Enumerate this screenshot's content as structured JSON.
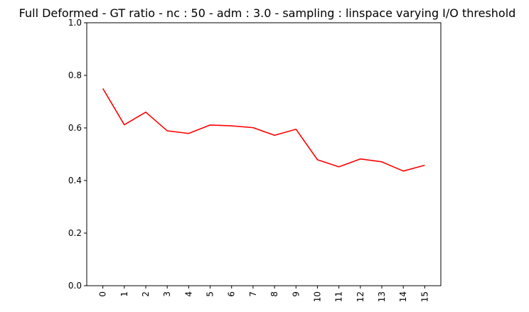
{
  "chart_data": {
    "type": "line",
    "title": "Full Deformed - GT ratio - nc : 50 - adm : 3.0 - sampling : linspace varying I/O threshold",
    "xlabel": "",
    "ylabel": "",
    "categories": [
      "0",
      "1",
      "2",
      "3",
      "4",
      "5",
      "6",
      "7",
      "8",
      "9",
      "10",
      "11",
      "12",
      "13",
      "14",
      "15"
    ],
    "series": [
      {
        "values": [
          0.75,
          0.612,
          0.66,
          0.589,
          0.579,
          0.611,
          0.608,
          0.601,
          0.572,
          0.595,
          0.479,
          0.452,
          0.482,
          0.471,
          0.436,
          0.458
        ],
        "color": "#ff0000"
      }
    ],
    "ylim": [
      0,
      1.0
    ],
    "yticks": [
      "0.0",
      "0.2",
      "0.4",
      "0.6",
      "0.8",
      "1.0"
    ],
    "grid": false,
    "x_tick_rotation": 90
  }
}
